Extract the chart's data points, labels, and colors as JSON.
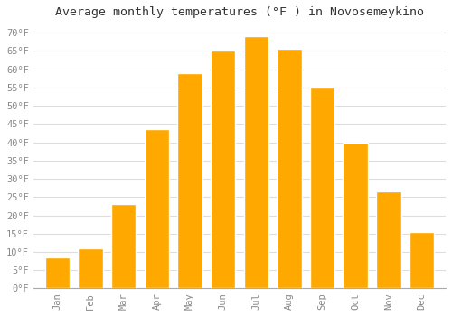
{
  "title": "Average monthly temperatures (°F ) in Novosemeykino",
  "months": [
    "Jan",
    "Feb",
    "Mar",
    "Apr",
    "May",
    "Jun",
    "Jul",
    "Aug",
    "Sep",
    "Oct",
    "Nov",
    "Dec"
  ],
  "values": [
    8.5,
    11,
    23,
    43.5,
    59,
    65,
    69,
    65.5,
    55,
    40,
    26.5,
    15.5
  ],
  "bar_color": "#FFA800",
  "bar_edge_color": "#FFFFFF",
  "background_color": "#FFFFFF",
  "plot_bg_color": "#FFFFFF",
  "grid_color": "#DDDDDD",
  "ylim": [
    0,
    72
  ],
  "yticks": [
    0,
    5,
    10,
    15,
    20,
    25,
    30,
    35,
    40,
    45,
    50,
    55,
    60,
    65,
    70
  ],
  "tick_label_color": "#888888",
  "title_fontsize": 9.5,
  "tick_fontsize": 7.5,
  "axis_font_family": "monospace"
}
